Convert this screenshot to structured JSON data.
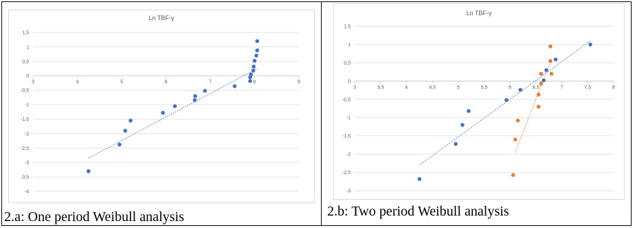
{
  "panels": [
    {
      "caption": "2.a: One period Weibull analysis"
    },
    {
      "caption": "2.b: Two period Weibull analysis"
    }
  ],
  "chart_data": [
    {
      "type": "scatter",
      "title": "Ln TBF-γ",
      "xlim": [
        3,
        9
      ],
      "ylim": [
        -4,
        1.5
      ],
      "x_ticks": [
        "3",
        "4",
        "5",
        "6",
        "7",
        "8",
        "9"
      ],
      "y_ticks": [
        "1,5",
        "1",
        "0,5",
        "0",
        "-0,5",
        "-1",
        "-1,5",
        "-2",
        "-2,5",
        "-3",
        "-3,5",
        "-4"
      ],
      "grid": true,
      "series": [
        {
          "color": "#4472c4",
          "marker": "circle",
          "x": [
            4.25,
            4.95,
            5.08,
            5.2,
            5.93,
            6.2,
            6.65,
            6.66,
            6.88,
            7.55,
            7.9,
            7.9,
            7.92,
            7.97,
            7.98,
            8.0,
            8.04,
            8.06
          ],
          "y": [
            -3.3,
            -2.38,
            -1.9,
            -1.55,
            -1.28,
            -1.05,
            -0.84,
            -0.7,
            -0.52,
            -0.36,
            -0.18,
            -0.05,
            0.05,
            0.18,
            0.32,
            0.52,
            0.7,
            0.88
          ],
          "trendline": {
            "style": "dotted",
            "x": [
              4.25,
              8.06
            ],
            "y": [
              -2.85,
              0.25
            ]
          }
        },
        {
          "color": "#4472c4",
          "marker": "circle",
          "x": [
            8.06
          ],
          "y": [
            1.2
          ]
        }
      ]
    },
    {
      "type": "scatter",
      "title": "Ln TBF-γ",
      "xlim": [
        3,
        8
      ],
      "ylim": [
        -3,
        1.5
      ],
      "x_ticks": [
        "3",
        "3,5",
        "4",
        "4,5",
        "5",
        "5,5",
        "6",
        "6,5",
        "7",
        "7,5",
        "8"
      ],
      "y_ticks": [
        "1,5",
        "1",
        "0,5",
        "0",
        "-0,5",
        "-1",
        "-1,5",
        "-2",
        "-2,5",
        "-3"
      ],
      "grid": true,
      "series": [
        {
          "color": "#4472c4",
          "marker": "circle",
          "x": [
            4.25,
            4.95,
            5.08,
            5.2,
            5.93,
            6.2,
            6.65,
            6.7,
            6.88,
            7.55
          ],
          "y": [
            -2.68,
            -1.72,
            -1.2,
            -0.82,
            -0.52,
            -0.24,
            0.02,
            0.3,
            0.59,
            1.0
          ],
          "trendline": {
            "style": "dotted",
            "x": [
              4.25,
              7.55
            ],
            "y": [
              -2.3,
              1.1
            ]
          }
        },
        {
          "color": "#ed7d31",
          "marker": "circle",
          "x": [
            6.06,
            6.1,
            6.15,
            6.55,
            6.55,
            6.6,
            6.6,
            6.78,
            6.78,
            6.8
          ],
          "y": [
            -2.57,
            -1.6,
            -1.08,
            -0.7,
            -0.37,
            -0.07,
            0.2,
            0.55,
            0.95,
            0.2
          ],
          "trendline": {
            "style": "dotted",
            "x": [
              6.1,
              6.8
            ],
            "y": [
              -1.95,
              0.6
            ]
          }
        }
      ]
    }
  ]
}
